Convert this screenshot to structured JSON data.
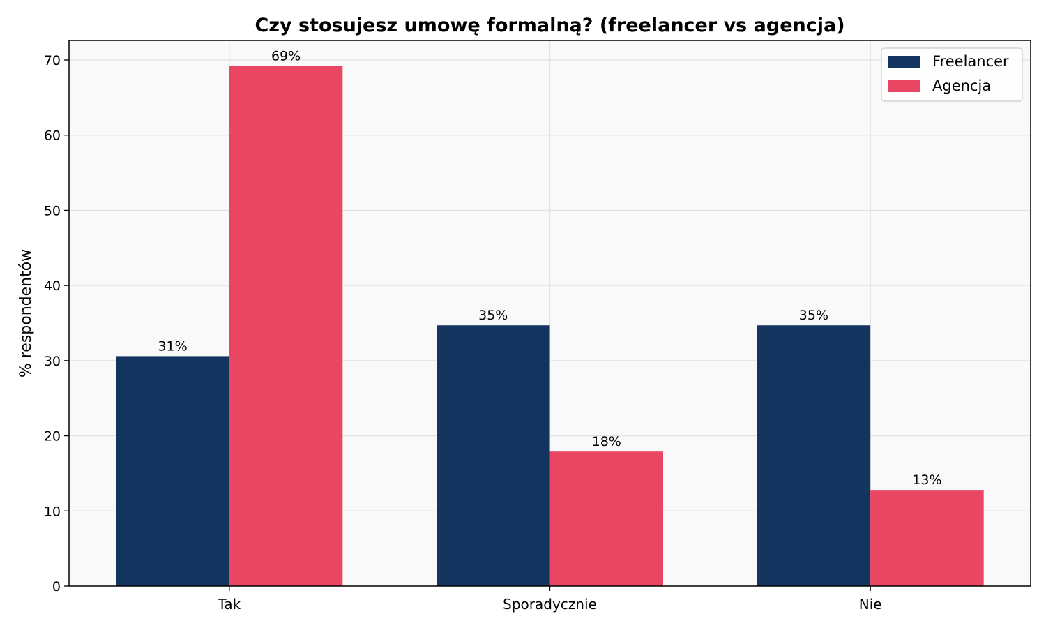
{
  "chart_data": {
    "type": "bar",
    "title": "Czy stosujesz umowę formalną? (freelancer vs agencja)",
    "xlabel": "",
    "ylabel": "% respondentów",
    "categories": [
      "Tak",
      "Sporadycznie",
      "Nie"
    ],
    "series": [
      {
        "name": "Freelancer",
        "color": "#12345e",
        "values": [
          30.6,
          34.7,
          34.7
        ],
        "labels": [
          "31%",
          "35%",
          "35%"
        ]
      },
      {
        "name": "Agencja",
        "color": "#e84663",
        "values": [
          69.2,
          17.9,
          12.8
        ],
        "labels": [
          "69%",
          "18%",
          "13%"
        ]
      }
    ],
    "ylim": [
      0,
      72.6
    ],
    "yticks": [
      0,
      10,
      20,
      30,
      40,
      50,
      60,
      70
    ],
    "grid": true,
    "legend_position": "top-right",
    "background": "#f9f9f9"
  }
}
